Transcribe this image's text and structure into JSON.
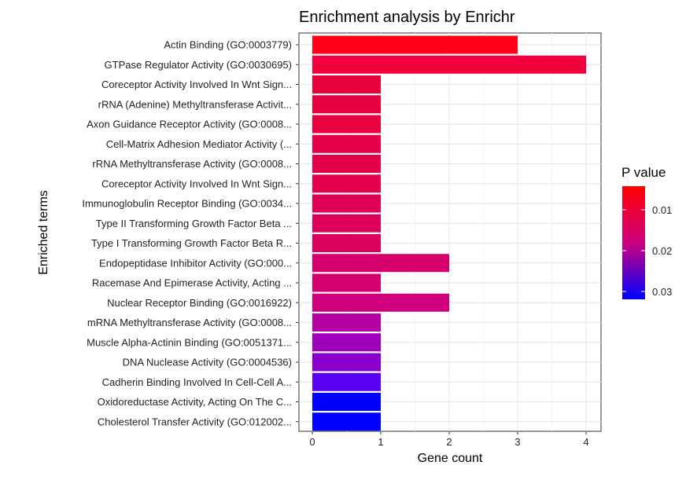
{
  "chart_data": {
    "type": "bar",
    "orientation": "horizontal",
    "title": "Enrichment analysis by Enrichr",
    "xlabel": "Gene count",
    "ylabel": "Enriched terms",
    "xlim": [
      0,
      4.2
    ],
    "xticks": [
      "0",
      "1",
      "2",
      "3",
      "4"
    ],
    "grid": true,
    "legend": {
      "title": "P value",
      "position": "right",
      "labels": [
        "0.01",
        "0.02",
        "0.03"
      ],
      "color_low": "#ff0000",
      "color_high": "#0000ff"
    },
    "categories": [
      "Actin Binding (GO:0003779)",
      "GTPase Regulator Activity (GO:0030695)",
      "Coreceptor Activity Involved In Wnt Sign...",
      "rRNA (Adenine) Methyltransferase Activit...",
      "Axon Guidance Receptor Activity (GO:0008...",
      "Cell-Matrix Adhesion Mediator Activity (...",
      "rRNA Methyltransferase Activity (GO:0008...",
      "Coreceptor Activity Involved In Wnt Sign...",
      "Immunoglobulin Receptor Binding (GO:0034...",
      "Type II Transforming Growth Factor Beta ...",
      "Type I Transforming Growth Factor Beta R...",
      "Endopeptidase Inhibitor Activity (GO:000...",
      "Racemase And Epimerase Activity, Acting ...",
      "Nuclear Receptor Binding (GO:0016922)",
      "mRNA Methyltransferase Activity (GO:0008...",
      "Muscle Alpha-Actinin Binding (GO:0051371...",
      "DNA Nuclease Activity (GO:0004536)",
      "Cadherin Binding Involved In Cell-Cell A...",
      "Oxidoreductase Activity, Acting On The C...",
      "Cholesterol Transfer Activity (GO:012002..."
    ],
    "values": [
      3,
      4,
      1,
      1,
      1,
      1,
      1,
      1,
      1,
      1,
      1,
      2,
      1,
      2,
      1,
      1,
      1,
      1,
      1,
      1
    ],
    "colors": [
      "#ff0019",
      "#f2003e",
      "#e7003a",
      "#e50040",
      "#e70040",
      "#e5004a",
      "#e30048",
      "#e2004f",
      "#df0055",
      "#dd005a",
      "#dc005d",
      "#d5006c",
      "#d40070",
      "#cf007b",
      "#b400a0",
      "#9d00b8",
      "#8800cd",
      "#5a00f0",
      "#0000ff",
      "#0000ff"
    ]
  }
}
